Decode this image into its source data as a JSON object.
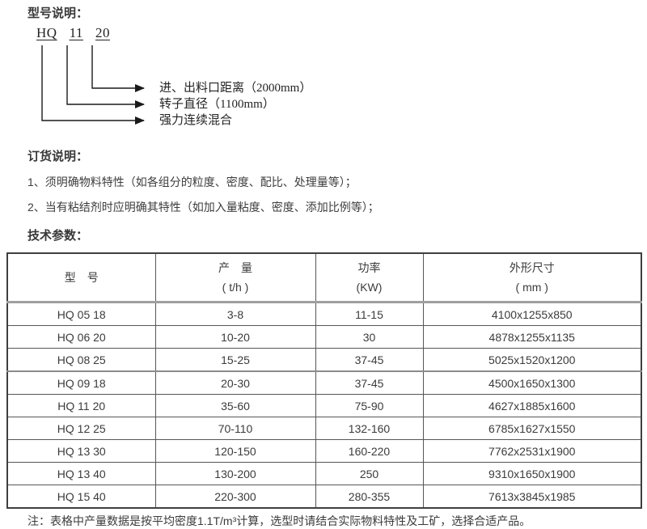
{
  "colors": {
    "text": "#3b3b3b",
    "line": "#1a1a1a",
    "table_border": "#565656",
    "thick_border": "#9f9f9f"
  },
  "model_section": {
    "title": "型号说明：",
    "code_parts": [
      "HQ",
      "11",
      "20"
    ],
    "labels": [
      {
        "text": "进、出料口距离（2000mm）"
      },
      {
        "text": "转子直径（1100mm）"
      },
      {
        "text": "强力连续混合"
      }
    ]
  },
  "order_section": {
    "title": "订货说明：",
    "items": [
      "1、须明确物料特性（如各组分的粒度、密度、配比、处理量等）；",
      "2、当有粘结剂时应明确其特性（如加入量粘度、密度、添加比例等）；"
    ]
  },
  "spec_section": {
    "title": "技术参数：",
    "table": {
      "headers": [
        {
          "line1": "型　号",
          "line2": ""
        },
        {
          "line1": "产　量",
          "line2": "( t/h )"
        },
        {
          "line1": "功率",
          "line2": "(KW)"
        },
        {
          "line1": "外形尺寸",
          "line2": "( mm )"
        }
      ],
      "rows": [
        [
          "HQ 05 18",
          "3-8",
          "11-15",
          "4100x1255x850"
        ],
        [
          "HQ 06 20",
          "10-20",
          "30",
          "4878x1255x1135"
        ],
        [
          "HQ 08 25",
          "15-25",
          "37-45",
          "5025x1520x1200"
        ],
        [
          "HQ 09 18",
          "20-30",
          "37-45",
          "4500x1650x1300"
        ],
        [
          "HQ 11 20",
          "35-60",
          "75-90",
          "4627x1885x1600"
        ],
        [
          "HQ 12 25",
          "70-110",
          "132-160",
          "6785x1627x1550"
        ],
        [
          "HQ 13 30",
          "120-150",
          "160-220",
          "7762x2531x1900"
        ],
        [
          "HQ 13 40",
          "130-200",
          "250",
          "9310x1650x1900"
        ],
        [
          "HQ 15 40",
          "220-300",
          "280-355",
          "7613x3845x1985"
        ]
      ]
    },
    "note": "注：表格中产量数据是按平均密度1.1T/m³计算，选型时请结合实际物料特性及工矿，选择合适产品。"
  }
}
